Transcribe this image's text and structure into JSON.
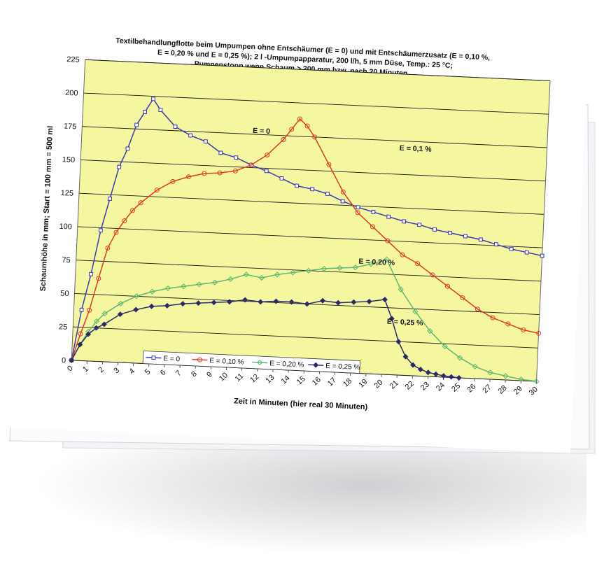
{
  "chart_data": {
    "type": "line",
    "title_lines": [
      "Textilbehandlungflotte beim Umpumpen ohne Entschäumer (E = 0)  und mit Entschäumerzusatz (E = 0,10 %,",
      "E = 0,20 % und E = 0,25 %); 2 l -Umpumpapparatur, 200 l/h, 5 mm Düse, Temp.: 25 °C;",
      "Pumpenstopp wenn Schaum > 200 mm bzw. nach 20 Minuten."
    ],
    "xlabel": "Zeit in Minuten (hier real 30 Minuten)",
    "ylabel": "Schaumhöhe in mm; Start = 100 mm = 500 ml",
    "xlim": [
      0,
      30
    ],
    "ylim": [
      0,
      225
    ],
    "x_ticks": [
      "0",
      "1",
      "2",
      "3",
      "4",
      "5",
      "6",
      "7",
      "8",
      "9",
      "10",
      "11",
      "12",
      "13",
      "14",
      "15",
      "16",
      "17",
      "18",
      "19",
      "20",
      "21",
      "22",
      "23",
      "24",
      "25",
      "26",
      "27",
      "28",
      "29",
      "30"
    ],
    "y_ticks": [
      "0",
      "25",
      "50",
      "75",
      "100",
      "125",
      "150",
      "175",
      "200",
      "225"
    ],
    "grid": "horizontal",
    "background_color": "#f4f6a0",
    "legend_position": "bottom-left",
    "series": [
      {
        "name": "E = 0",
        "color": "#3a3ab4",
        "marker": "square-open",
        "annotation": "E = 0",
        "x": [
          0,
          0.5,
          1,
          1.5,
          2,
          2.5,
          3,
          3.5,
          4,
          4.5,
          5,
          6,
          7,
          8,
          9,
          10,
          11,
          12,
          13,
          14,
          15,
          16,
          17,
          18,
          19,
          20,
          21,
          22,
          23,
          24,
          25,
          26,
          27,
          28,
          29,
          30
        ],
        "y": [
          0,
          38,
          65,
          98,
          122,
          146,
          160,
          178,
          188,
          198,
          190,
          178,
          172,
          168,
          160,
          157,
          152,
          148,
          143,
          138,
          136,
          133,
          128,
          124,
          121,
          118,
          115,
          113,
          110,
          108,
          106,
          104,
          101,
          98,
          96,
          94
        ]
      },
      {
        "name": "E = 0,10 %",
        "color": "#e03a2a",
        "marker": "circle-open",
        "annotation": "E = 0,1 %",
        "x": [
          0,
          0.5,
          1,
          1.5,
          2,
          2.5,
          3,
          3.5,
          4,
          5,
          6,
          7,
          8,
          9,
          10,
          11,
          12,
          13,
          13.5,
          14,
          14.5,
          15,
          16,
          17,
          18,
          19,
          20,
          21,
          22,
          23,
          24,
          25,
          26,
          27,
          28,
          29,
          30
        ],
        "y": [
          0,
          20,
          38,
          62,
          85,
          97,
          106,
          114,
          120,
          130,
          137,
          141,
          144,
          145,
          147,
          152,
          160,
          172,
          180,
          188,
          183,
          175,
          155,
          135,
          120,
          110,
          100,
          90,
          84,
          76,
          68,
          60,
          52,
          46,
          42,
          38,
          36
        ]
      },
      {
        "name": "E = 0,20 %",
        "color": "#5cb870",
        "marker": "diamond-open",
        "annotation": "E = 0,20 %",
        "x": [
          0,
          0.5,
          1,
          1.5,
          2,
          3,
          4,
          5,
          6,
          7,
          8,
          9,
          10,
          11,
          12,
          13,
          14,
          15,
          16,
          17,
          18,
          19,
          20,
          21,
          22,
          23,
          24,
          25,
          26,
          27,
          28,
          29,
          30
        ],
        "y": [
          0,
          12,
          22,
          30,
          36,
          44,
          50,
          54,
          57,
          59,
          61,
          63,
          66,
          70,
          68,
          71,
          73,
          75,
          77,
          78,
          79,
          82,
          86,
          64,
          48,
          34,
          23,
          15,
          9,
          5,
          3,
          1,
          0
        ]
      },
      {
        "name": "E = 0,25 %",
        "color": "#2a2a6a",
        "marker": "diamond-filled",
        "annotation": "E = 0,25 %",
        "x": [
          0,
          0.5,
          1,
          1.5,
          2,
          3,
          4,
          5,
          6,
          7,
          8,
          9,
          10,
          11,
          12,
          13,
          14,
          15,
          16,
          17,
          18,
          19,
          20,
          20.5,
          21,
          21.5,
          22,
          22.5,
          23,
          23.5,
          24,
          24.5,
          25
        ],
        "y": [
          0,
          12,
          20,
          25,
          28,
          36,
          40,
          43,
          44,
          46,
          47,
          48,
          49,
          51,
          50,
          51,
          51,
          50,
          53,
          52,
          53,
          54,
          56,
          42,
          25,
          14,
          8,
          5,
          3,
          2,
          1,
          0.5,
          0
        ]
      }
    ]
  }
}
